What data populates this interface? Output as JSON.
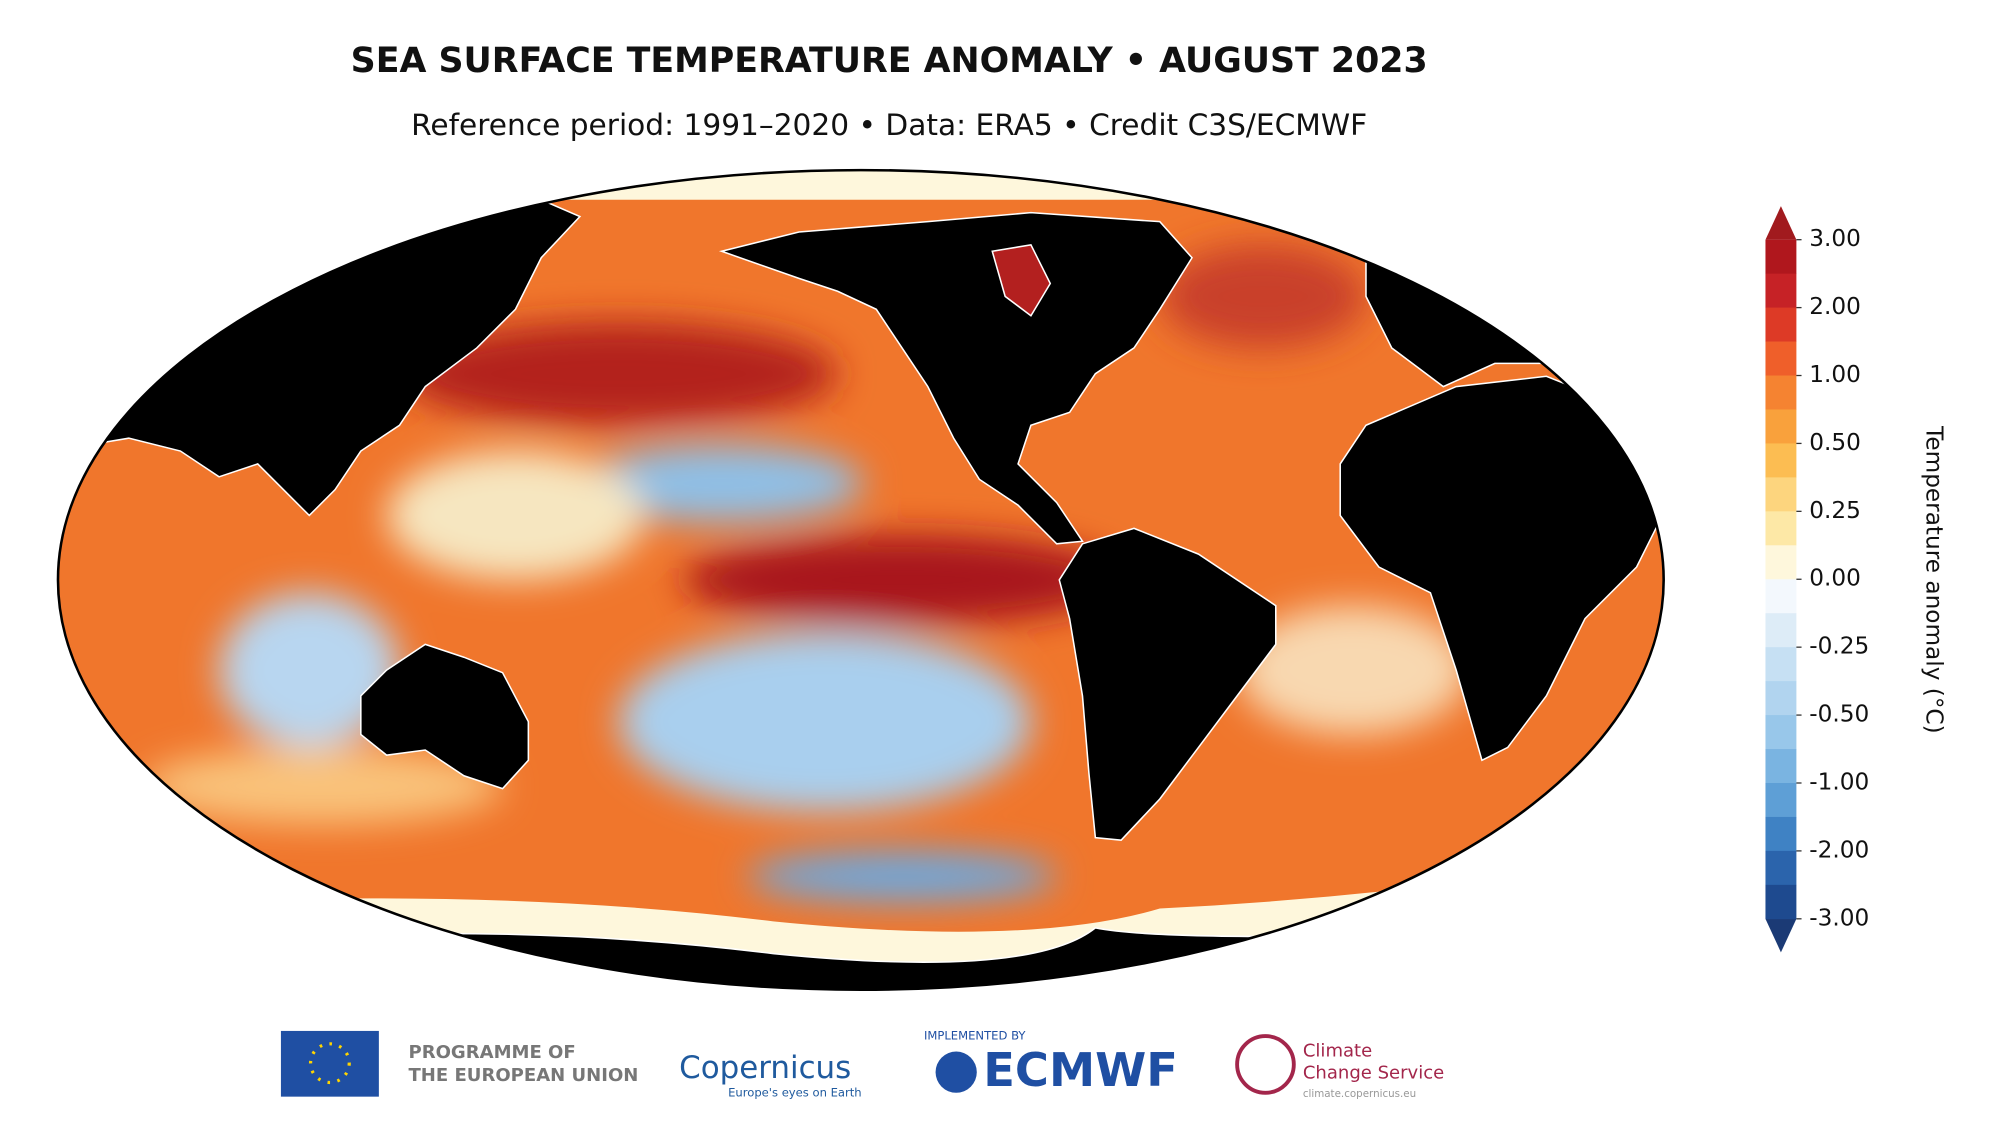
{
  "header": {
    "title": "SEA SURFACE TEMPERATURE ANOMALY • AUGUST 2023",
    "subtitle": "Reference period: 1991–2020 • Data: ERA5 • Credit C3S/ECMWF"
  },
  "colorbar": {
    "label": "Temperature anomaly (°C)",
    "ticks": [
      {
        "value": 3,
        "label": "3.00"
      },
      {
        "value": 2,
        "label": "2.00"
      },
      {
        "value": 1,
        "label": "1.00"
      },
      {
        "value": 0.5,
        "label": "0.50"
      },
      {
        "value": 0.25,
        "label": "0.25"
      },
      {
        "value": 0,
        "label": "0.00"
      },
      {
        "value": -0.25,
        "label": "-0.25"
      },
      {
        "value": -0.5,
        "label": "-0.50"
      },
      {
        "value": -1,
        "label": "-1.00"
      },
      {
        "value": -2,
        "label": "-2.00"
      },
      {
        "value": -3,
        "label": "-3.00"
      }
    ],
    "colors": [
      "#b0171d",
      "#c62226",
      "#dd3a26",
      "#ef5f2a",
      "#f58331",
      "#f9a13c",
      "#fcbd52",
      "#fdd57e",
      "#fde8a6",
      "#fef7dc",
      "#f3f8fd",
      "#ddecf7",
      "#c6e0f3",
      "#b1d4ef",
      "#98c7ea",
      "#7ab4e1",
      "#5e9fd6",
      "#3f82c4",
      "#2b64ac",
      "#1e4a8f"
    ],
    "extend_colors": [
      "#a11a1e",
      "#1b3a75"
    ]
  },
  "footer": {
    "eu": [
      "PROGRAMME OF",
      "THE EUROPEAN UNION"
    ],
    "copernicus": "Copernicus",
    "copernicus_tagline": "Europe's eyes on Earth",
    "implemented_by": "IMPLEMENTED BY",
    "ecmwf": "ECMWF",
    "c3s": [
      "Climate",
      "Change Service"
    ],
    "c3s_url": "climate.copernicus.eu"
  }
}
